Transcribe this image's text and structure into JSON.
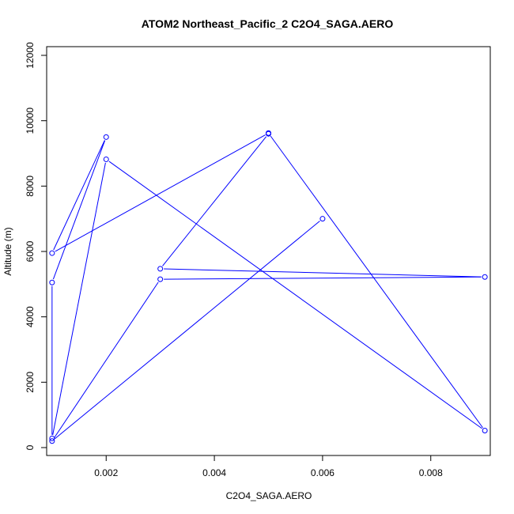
{
  "chart_data": {
    "type": "line",
    "title": "ATOM2 Northeast_Pacific_2 C2O4_SAGA.AERO",
    "xlabel": "C2O4_SAGA.AERO",
    "ylabel": "Altitude (m)",
    "xlim": [
      0.0009,
      0.0091
    ],
    "ylim": [
      0,
      12000
    ],
    "xticks": [
      0.002,
      0.004,
      0.006,
      0.008
    ],
    "xtick_labels": [
      "0.002",
      "0.004",
      "0.006",
      "0.008"
    ],
    "yticks": [
      0,
      2000,
      4000,
      6000,
      8000,
      10000,
      12000
    ],
    "ytick_labels": [
      "0",
      "2000",
      "4000",
      "6000",
      "8000",
      "10000",
      "12000"
    ],
    "grid": false,
    "series": [
      {
        "color": "#0000ff",
        "marker": "open-circle",
        "points": [
          {
            "x": 0.006,
            "y": 7000
          },
          {
            "x": 0.001,
            "y": 200
          },
          {
            "x": 0.003,
            "y": 5150
          },
          {
            "x": 0.009,
            "y": 5220
          },
          {
            "x": 0.003,
            "y": 5470
          },
          {
            "x": 0.005,
            "y": 9600
          },
          {
            "x": 0.005,
            "y": 9620
          },
          {
            "x": 0.001,
            "y": 5950
          },
          {
            "x": 0.002,
            "y": 9500
          },
          {
            "x": 0.001,
            "y": 5050
          },
          {
            "x": 0.001,
            "y": 280
          },
          {
            "x": 0.002,
            "y": 8820
          },
          {
            "x": 0.009,
            "y": 520
          },
          {
            "x": 0.005,
            "y": 9620
          }
        ]
      }
    ]
  }
}
